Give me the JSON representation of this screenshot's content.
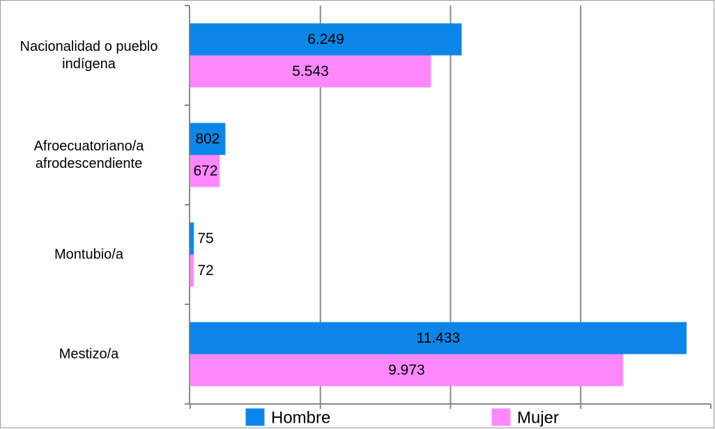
{
  "chart_data": {
    "type": "bar",
    "orientation": "horizontal",
    "categories": [
      "Nacionalidad o pueblo indígena",
      "Afroecuatoriano/a afrodescendiente",
      "Montubio/a",
      "Mestizo/a"
    ],
    "series": [
      {
        "name": "Hombre",
        "color": "#0b86e8",
        "values": [
          6249,
          802,
          75,
          11433
        ],
        "value_labels": [
          "6.249",
          "802",
          "75",
          "11.433"
        ]
      },
      {
        "name": "Mujer",
        "color": "#ff88ff",
        "values": [
          5543,
          672,
          72,
          9973
        ],
        "value_labels": [
          "5.543",
          "672",
          "72",
          "9.973"
        ]
      }
    ],
    "xlim": [
      0,
      12000
    ],
    "xticks": [
      0,
      3000,
      6000,
      9000,
      12000
    ],
    "grid": true,
    "legend": "bottom"
  }
}
